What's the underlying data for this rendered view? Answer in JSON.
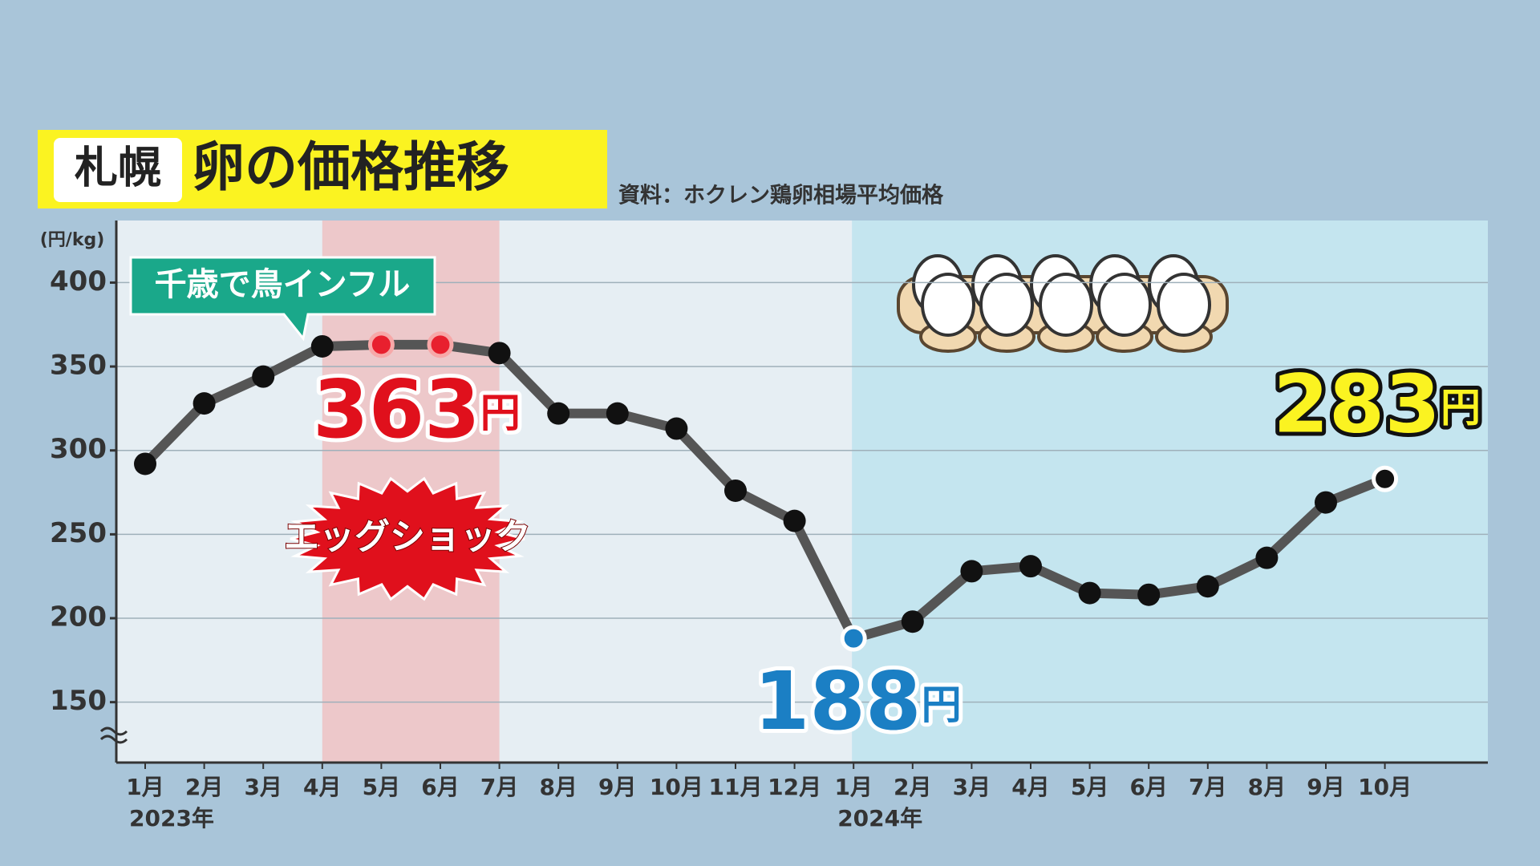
{
  "chart_data": {
    "type": "line",
    "title_location": "札幌",
    "title": "卵の価格推移",
    "source": "資料：ホクレン鶏卵相場平均価格",
    "y_unit": "(円/kg)",
    "categories": [
      "1月",
      "2月",
      "3月",
      "4月",
      "5月",
      "6月",
      "7月",
      "8月",
      "9月",
      "10月",
      "11月",
      "12月",
      "1月",
      "2月",
      "3月",
      "4月",
      "5月",
      "6月",
      "7月",
      "8月",
      "9月",
      "10月"
    ],
    "category_years": [
      "2023年",
      null,
      null,
      null,
      null,
      null,
      null,
      null,
      null,
      null,
      null,
      null,
      "2024年",
      null,
      null,
      null,
      null,
      null,
      null,
      null,
      null,
      null
    ],
    "values": [
      292,
      328,
      344,
      362,
      363,
      363,
      358,
      322,
      322,
      313,
      276,
      258,
      188,
      198,
      228,
      231,
      215,
      214,
      219,
      236,
      269,
      283
    ],
    "value_labels": [
      null,
      null,
      null,
      null,
      "363円",
      null,
      null,
      null,
      null,
      null,
      null,
      null,
      "188円",
      null,
      null,
      null,
      null,
      null,
      null,
      null,
      null,
      "283円"
    ],
    "color": "#555555",
    "marker_colors": [
      "#111111",
      "#111111",
      "#111111",
      "#111111",
      "#e8202e",
      "#e8202e",
      "#111111",
      "#111111",
      "#111111",
      "#111111",
      "#111111",
      "#111111",
      "#1b7fc4",
      "#111111",
      "#111111",
      "#111111",
      "#111111",
      "#111111",
      "#111111",
      "#111111",
      "#111111",
      "#111111"
    ],
    "annotations": [
      "千歳で鳥インフル",
      "エッグショック"
    ],
    "ylim": [
      114,
      437
    ],
    "yticks": [
      150,
      200,
      250,
      300,
      350,
      400
    ],
    "grid": true
  }
}
